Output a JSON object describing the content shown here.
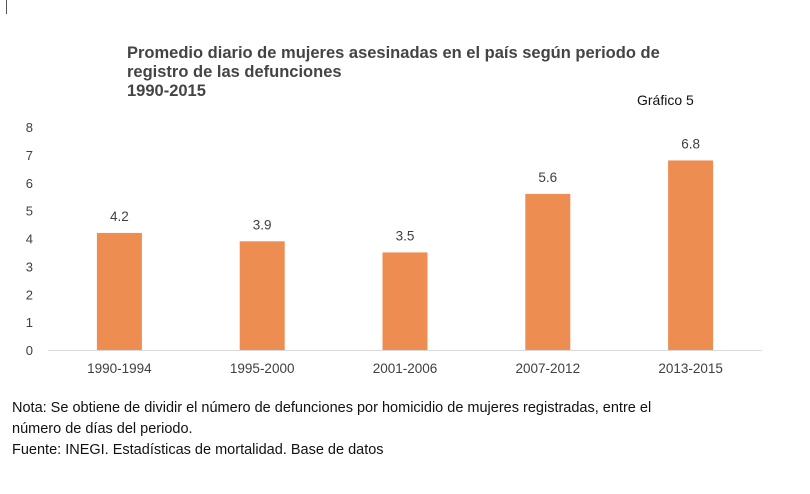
{
  "title_lines": [
    "Promedio diario de mujeres asesinadas en el país según periodo de",
    "registro de las defunciones",
    "1990-2015"
  ],
  "figure_label": "Gráfico 5",
  "colors": {
    "bar": "#ED8D52",
    "axis": "#D9D9D9",
    "text": "#404040"
  },
  "chart_data": {
    "type": "bar",
    "categories": [
      "1990-1994",
      "1995-2000",
      "2001-2006",
      "2007-2012",
      "2013-2015"
    ],
    "values": [
      4.2,
      3.9,
      3.5,
      5.6,
      6.8
    ],
    "data_labels": [
      "4.2",
      "3.9",
      "3.5",
      "5.6",
      "6.8"
    ],
    "ylim": [
      0,
      8
    ],
    "yticks": [
      0,
      1,
      2,
      3,
      4,
      5,
      6,
      7,
      8
    ],
    "grid": false,
    "xlabel": "",
    "ylabel": ""
  },
  "footnotes": {
    "note_line1": "Nota: Se obtiene de dividir el número de defunciones por homicidio de mujeres registradas, entre el",
    "note_line2": "número de días del periodo.",
    "source": "Fuente: INEGI. Estadísticas de mortalidad. Base de datos"
  }
}
